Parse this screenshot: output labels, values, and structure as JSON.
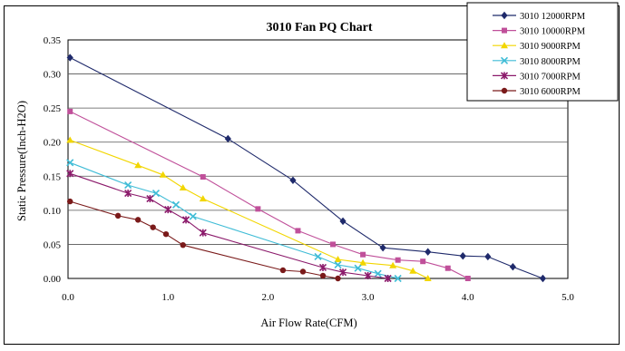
{
  "chart_data": {
    "type": "line",
    "title": "3010  Fan PQ Chart",
    "xlabel": "Air Flow Rate(CFM)",
    "ylabel": "Static Pressure(Inch-H2O)",
    "xlim": [
      0,
      5
    ],
    "ylim": [
      0,
      0.35
    ],
    "x_ticks": [
      "0.0",
      "1.0",
      "2.0",
      "3.0",
      "4.0",
      "5.0"
    ],
    "y_ticks": [
      "0.00",
      "0.05",
      "0.10",
      "0.15",
      "0.20",
      "0.25",
      "0.30",
      "0.35"
    ],
    "grid": "horizontal",
    "legend_position": "top-right",
    "series": [
      {
        "name": "3010  12000RPM",
        "color": "#1f2a6b",
        "marker": "diamond",
        "points": [
          [
            0.02,
            0.324
          ],
          [
            1.6,
            0.205
          ],
          [
            2.25,
            0.144
          ],
          [
            2.75,
            0.084
          ],
          [
            3.15,
            0.045
          ],
          [
            3.6,
            0.039
          ],
          [
            3.95,
            0.033
          ],
          [
            4.2,
            0.032
          ],
          [
            4.45,
            0.017
          ],
          [
            4.75,
            0.0
          ]
        ]
      },
      {
        "name": "3010  10000RPM",
        "color": "#c0509a",
        "marker": "square",
        "points": [
          [
            0.02,
            0.245
          ],
          [
            1.35,
            0.149
          ],
          [
            1.9,
            0.102
          ],
          [
            2.3,
            0.07
          ],
          [
            2.65,
            0.05
          ],
          [
            2.95,
            0.035
          ],
          [
            3.3,
            0.027
          ],
          [
            3.55,
            0.025
          ],
          [
            3.8,
            0.015
          ],
          [
            4.0,
            0.0
          ]
        ]
      },
      {
        "name": "3010  9000RPM",
        "color": "#f2d600",
        "marker": "triangle",
        "points": [
          [
            0.02,
            0.203
          ],
          [
            0.7,
            0.166
          ],
          [
            0.95,
            0.152
          ],
          [
            1.15,
            0.133
          ],
          [
            1.35,
            0.117
          ],
          [
            2.7,
            0.028
          ],
          [
            2.95,
            0.023
          ],
          [
            3.25,
            0.019
          ],
          [
            3.45,
            0.011
          ],
          [
            3.6,
            0.0
          ]
        ]
      },
      {
        "name": "3010  8000RPM",
        "color": "#3fbcd6",
        "marker": "x",
        "points": [
          [
            0.02,
            0.17
          ],
          [
            0.6,
            0.137
          ],
          [
            0.88,
            0.125
          ],
          [
            1.08,
            0.108
          ],
          [
            1.25,
            0.091
          ],
          [
            2.5,
            0.032
          ],
          [
            2.7,
            0.02
          ],
          [
            2.9,
            0.015
          ],
          [
            3.1,
            0.007
          ],
          [
            3.3,
            0.0
          ]
        ]
      },
      {
        "name": "3010  7000RPM",
        "color": "#8b1a6b",
        "marker": "star",
        "points": [
          [
            0.02,
            0.154
          ],
          [
            0.6,
            0.125
          ],
          [
            0.82,
            0.117
          ],
          [
            1.0,
            0.101
          ],
          [
            1.18,
            0.086
          ],
          [
            1.35,
            0.067
          ],
          [
            2.55,
            0.016
          ],
          [
            2.75,
            0.009
          ],
          [
            3.0,
            0.004
          ],
          [
            3.2,
            0.0
          ]
        ]
      },
      {
        "name": "3010  6000RPM",
        "color": "#7a1a1a",
        "marker": "circle",
        "points": [
          [
            0.02,
            0.113
          ],
          [
            0.5,
            0.092
          ],
          [
            0.7,
            0.086
          ],
          [
            0.85,
            0.075
          ],
          [
            0.98,
            0.065
          ],
          [
            1.15,
            0.049
          ],
          [
            2.15,
            0.012
          ],
          [
            2.35,
            0.01
          ],
          [
            2.55,
            0.004
          ],
          [
            2.7,
            0.0
          ]
        ]
      }
    ]
  }
}
